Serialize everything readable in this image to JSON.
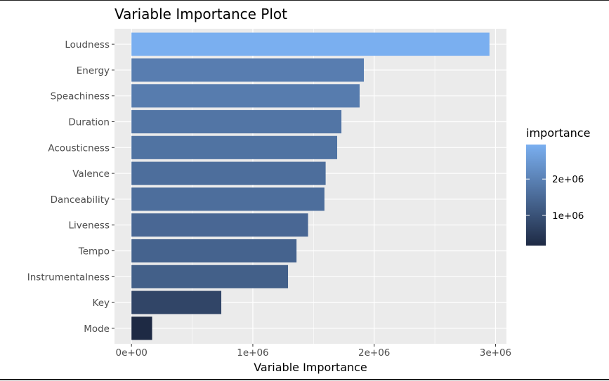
{
  "chart_data": {
    "type": "bar",
    "orientation": "horizontal",
    "title": "Variable Importance Plot",
    "xlabel": "Variable Importance",
    "ylabel": "",
    "categories": [
      "Loudness",
      "Energy",
      "Speachiness",
      "Duration",
      "Acousticness",
      "Valence",
      "Danceability",
      "Liveness",
      "Tempo",
      "Instrumentalness",
      "Key",
      "Mode"
    ],
    "values": [
      2950000,
      1915000,
      1880000,
      1730000,
      1695000,
      1600000,
      1590000,
      1455000,
      1360000,
      1290000,
      740000,
      170000
    ],
    "xlim": [
      -140000,
      3090000
    ],
    "x_ticks": [
      0,
      1000000,
      2000000,
      3000000
    ],
    "x_tick_labels": [
      "0e+00",
      "1e+06",
      "2e+06",
      "3e+06"
    ],
    "grid": true,
    "legend": {
      "title": "importance",
      "placement": "right",
      "min": 170000,
      "max": 2950000,
      "ticks": [
        1000000,
        2000000
      ],
      "tick_labels": [
        "1e+06",
        "2e+06"
      ],
      "color_low": "#1e2a44",
      "color_high": "#7aaff0"
    },
    "panel_background": "#ebebeb"
  }
}
